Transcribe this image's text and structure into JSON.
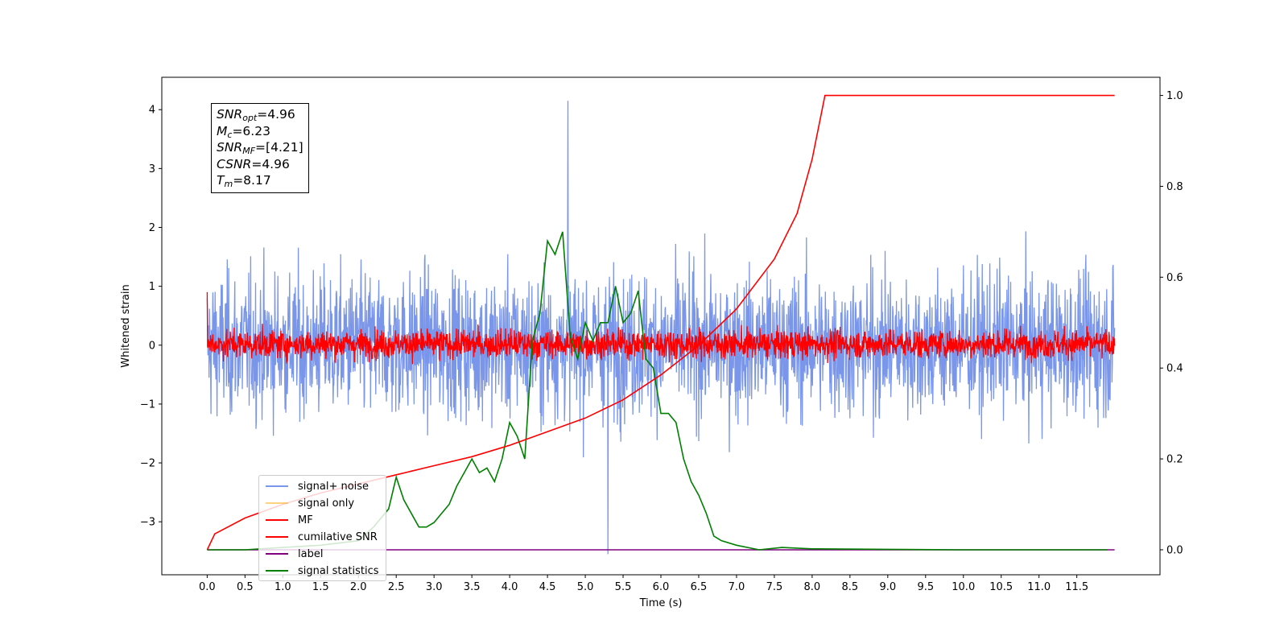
{
  "chart_data": {
    "type": "line",
    "title": "",
    "xlabel": "Time (s)",
    "ylabel": "Whitened strain",
    "xlim": [
      -0.6,
      12.6
    ],
    "ylim": [
      -3.9,
      4.55
    ],
    "y2lim": [
      -0.055,
      1.04
    ],
    "x_ticks": [
      "0.0",
      "0.5",
      "1.0",
      "1.5",
      "2.0",
      "2.5",
      "3.0",
      "3.5",
      "4.0",
      "4.5",
      "5.0",
      "5.5",
      "6.0",
      "6.5",
      "7.0",
      "7.5",
      "8.0",
      "8.5",
      "9.0",
      "9.5",
      "10.0",
      "10.5",
      "11.0",
      "11.5"
    ],
    "y_ticks": [
      "4",
      "3",
      "2",
      "1",
      "0",
      "−1",
      "−2",
      "−3"
    ],
    "y2_ticks": [
      "1.0",
      "0.8",
      "0.6",
      "0.4",
      "0.2",
      "0.0"
    ],
    "annotation": {
      "snr_opt": "=4.96",
      "mc": "=6.23",
      "snr_mf": "=[4.21]",
      "csnr": "=4.96",
      "tm": "=8.17"
    },
    "series": [
      {
        "name": "signal+ noise",
        "color": "#4169e1",
        "axis": "left",
        "style": "noise",
        "x_range": [
          0,
          12
        ],
        "approx_envelope": [
          -2.3,
          2.3
        ],
        "peak": {
          "x": 4.77,
          "y": 4.15
        },
        "min": {
          "x": 5.3,
          "y": -3.55
        }
      },
      {
        "name": "signal only",
        "color": "#ffbf66",
        "axis": "left",
        "values": []
      },
      {
        "name": "MF",
        "color": "#ff0000",
        "axis": "left",
        "style": "noise",
        "x_range": [
          0,
          12
        ],
        "approx_envelope": [
          -0.4,
          0.7
        ]
      },
      {
        "name": "cumilative SNR",
        "color": "#ff0000",
        "axis": "right",
        "x": [
          0,
          0.1,
          0.5,
          1.0,
          1.5,
          2.0,
          2.5,
          3.0,
          3.5,
          4.0,
          4.5,
          5.0,
          5.5,
          6.0,
          6.5,
          7.0,
          7.5,
          7.8,
          8.0,
          8.17,
          12.0
        ],
        "values": [
          0.0,
          0.035,
          0.07,
          0.1,
          0.125,
          0.145,
          0.165,
          0.185,
          0.205,
          0.23,
          0.26,
          0.29,
          0.33,
          0.385,
          0.45,
          0.53,
          0.64,
          0.74,
          0.86,
          1.0,
          1.0
        ]
      },
      {
        "name": "label",
        "color": "#800080",
        "axis": "right",
        "x": [
          0,
          12
        ],
        "values": [
          0,
          0
        ]
      },
      {
        "name": "signal statistics",
        "color": "#008000",
        "axis": "right",
        "x": [
          0.0,
          0.5,
          1.0,
          1.5,
          2.0,
          2.2,
          2.4,
          2.5,
          2.6,
          2.7,
          2.8,
          2.9,
          3.0,
          3.1,
          3.2,
          3.3,
          3.4,
          3.5,
          3.6,
          3.7,
          3.8,
          3.9,
          4.0,
          4.1,
          4.2,
          4.3,
          4.4,
          4.5,
          4.6,
          4.7,
          4.8,
          4.9,
          5.0,
          5.1,
          5.2,
          5.3,
          5.4,
          5.5,
          5.6,
          5.7,
          5.8,
          5.9,
          6.0,
          6.1,
          6.2,
          6.3,
          6.4,
          6.5,
          6.6,
          6.7,
          6.8,
          7.0,
          7.3,
          7.6,
          8.0,
          9.0,
          10.0,
          11.0,
          11.9
        ],
        "values": [
          0.0,
          0.0,
          0.005,
          0.01,
          0.02,
          0.05,
          0.09,
          0.16,
          0.11,
          0.08,
          0.05,
          0.05,
          0.06,
          0.08,
          0.1,
          0.14,
          0.17,
          0.2,
          0.17,
          0.18,
          0.15,
          0.2,
          0.28,
          0.25,
          0.2,
          0.46,
          0.52,
          0.68,
          0.65,
          0.7,
          0.47,
          0.42,
          0.5,
          0.46,
          0.5,
          0.5,
          0.58,
          0.5,
          0.52,
          0.57,
          0.42,
          0.4,
          0.3,
          0.3,
          0.28,
          0.2,
          0.15,
          0.12,
          0.08,
          0.03,
          0.02,
          0.01,
          0.0,
          0.005,
          0.002,
          0.001,
          0.0,
          0.0,
          0.0
        ]
      }
    ]
  },
  "legend": {
    "items": [
      {
        "label": "signal+ noise",
        "color": "#4169e1",
        "alpha": 0.7
      },
      {
        "label": "signal only",
        "color": "#ffa500",
        "alpha": 0.5
      },
      {
        "label": "MF",
        "color": "#ff0000",
        "alpha": 1
      },
      {
        "label": "cumilative SNR",
        "color": "#ff0000",
        "alpha": 1
      },
      {
        "label": "label",
        "color": "#800080",
        "alpha": 1
      },
      {
        "label": "signal statistics",
        "color": "#008000",
        "alpha": 1
      }
    ]
  }
}
